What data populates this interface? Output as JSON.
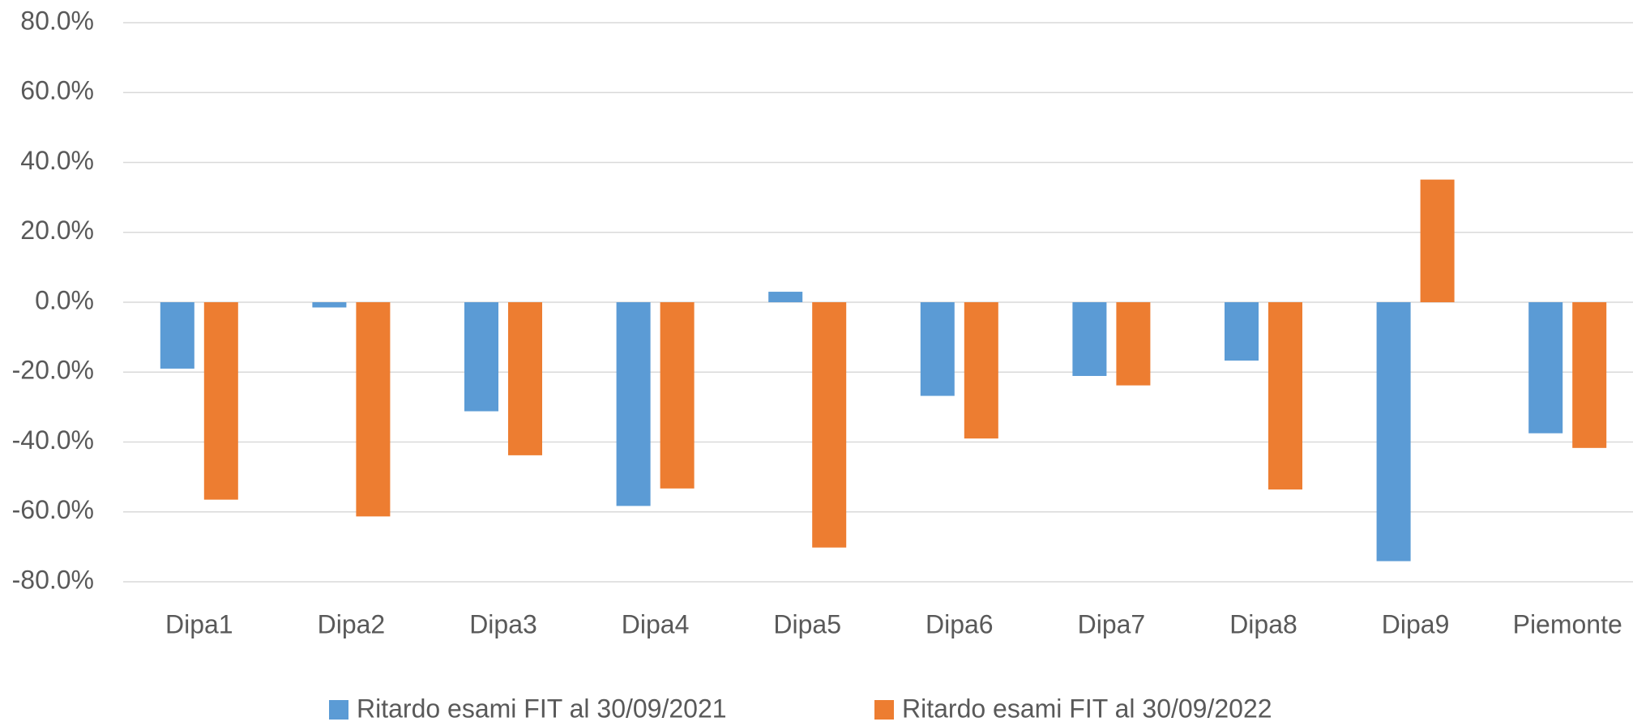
{
  "chart_data": {
    "type": "bar",
    "categories": [
      "Dipa1",
      "Dipa2",
      "Dipa3",
      "Dipa4",
      "Dipa5",
      "Dipa6",
      "Dipa7",
      "Dipa8",
      "Dipa9",
      "Piemonte"
    ],
    "series": [
      {
        "name": "Ritardo esami FIT al 30/09/2021",
        "color": "#5b9bd5",
        "values": [
          -19.0,
          -1.5,
          -31.2,
          -58.3,
          3.0,
          -26.8,
          -21.1,
          -16.7,
          -74.1,
          -37.5
        ]
      },
      {
        "name": "Ritardo esami FIT al 30/09/2022",
        "color": "#ed7d31",
        "values": [
          -56.5,
          -61.3,
          -43.8,
          -53.3,
          -70.2,
          -39.0,
          -23.8,
          -53.6,
          35.1,
          -41.7
        ]
      }
    ],
    "ylim": [
      -80,
      80
    ],
    "yticks": [
      {
        "value": -80,
        "label": "-80.0%"
      },
      {
        "value": -60,
        "label": "-60.0%"
      },
      {
        "value": -40,
        "label": "-40.0%"
      },
      {
        "value": -20,
        "label": "-20.0%"
      },
      {
        "value": 0,
        "label": "0.0%"
      },
      {
        "value": 20,
        "label": "20.0%"
      },
      {
        "value": 40,
        "label": "40.0%"
      },
      {
        "value": 60,
        "label": "60.0%"
      },
      {
        "value": 80,
        "label": "80.0%"
      }
    ],
    "grid": true,
    "legend": "bottom"
  }
}
